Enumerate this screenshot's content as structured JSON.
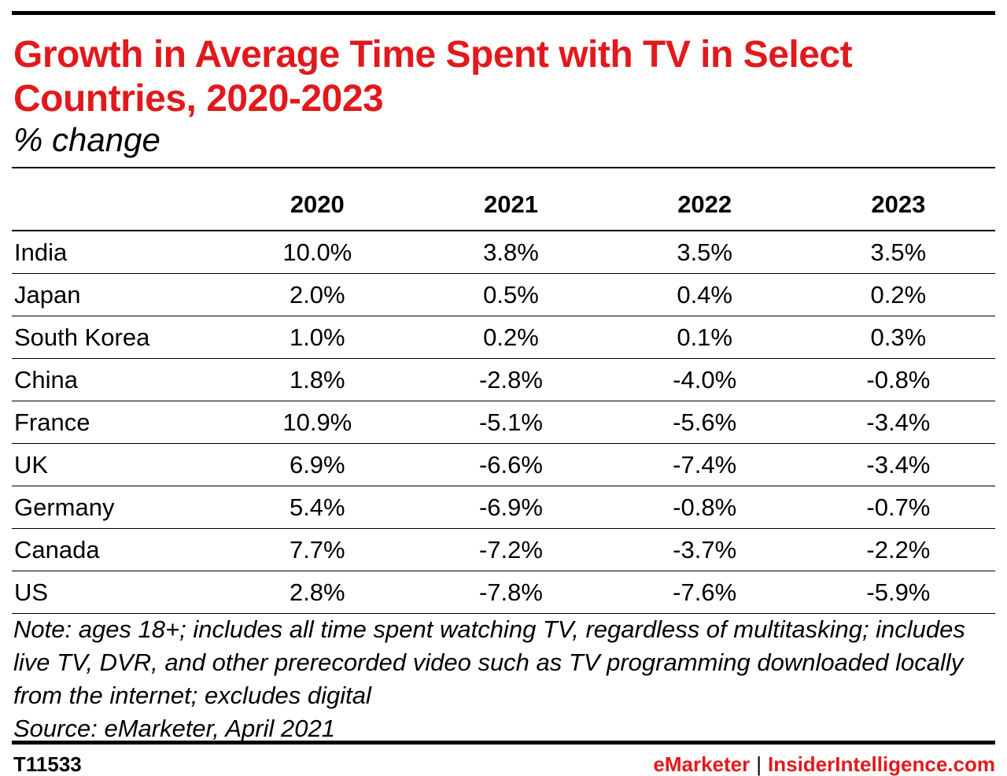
{
  "chart_data": {
    "type": "table",
    "title": "Growth in Average Time Spent with TV in Select Countries, 2020-2023",
    "subtitle": "% change",
    "columns": [
      "",
      "2020",
      "2021",
      "2022",
      "2023"
    ],
    "rows": [
      {
        "country": "India",
        "values": [
          "10.0%",
          "3.8%",
          "3.5%",
          "3.5%"
        ]
      },
      {
        "country": "Japan",
        "values": [
          "2.0%",
          "0.5%",
          "0.4%",
          "0.2%"
        ]
      },
      {
        "country": "South Korea",
        "values": [
          "1.0%",
          "0.2%",
          "0.1%",
          "0.3%"
        ]
      },
      {
        "country": "China",
        "values": [
          "1.8%",
          "-2.8%",
          "-4.0%",
          "-0.8%"
        ]
      },
      {
        "country": "France",
        "values": [
          "10.9%",
          "-5.1%",
          "-5.6%",
          "-3.4%"
        ]
      },
      {
        "country": "UK",
        "values": [
          "6.9%",
          "-6.6%",
          "-7.4%",
          "-3.4%"
        ]
      },
      {
        "country": "Germany",
        "values": [
          "5.4%",
          "-6.9%",
          "-0.8%",
          "-0.7%"
        ]
      },
      {
        "country": "Canada",
        "values": [
          "7.7%",
          "-7.2%",
          "-3.7%",
          "-2.2%"
        ]
      },
      {
        "country": "US",
        "values": [
          "2.8%",
          "-7.8%",
          "-7.6%",
          "-5.9%"
        ]
      }
    ],
    "note": "Note: ages 18+; includes all time spent watching TV, regardless of multitasking; includes live TV, DVR, and other prerecorded video such as TV programming downloaded locally from the internet; excludes digital",
    "source": "Source: eMarketer, April 2021"
  },
  "footer": {
    "id": "T11533",
    "brand_left": "eMarketer",
    "separator": "|",
    "brand_right": "InsiderIntelligence.com"
  },
  "colors": {
    "title": "#e2191c",
    "text": "#000000",
    "background": "#ffffff"
  }
}
